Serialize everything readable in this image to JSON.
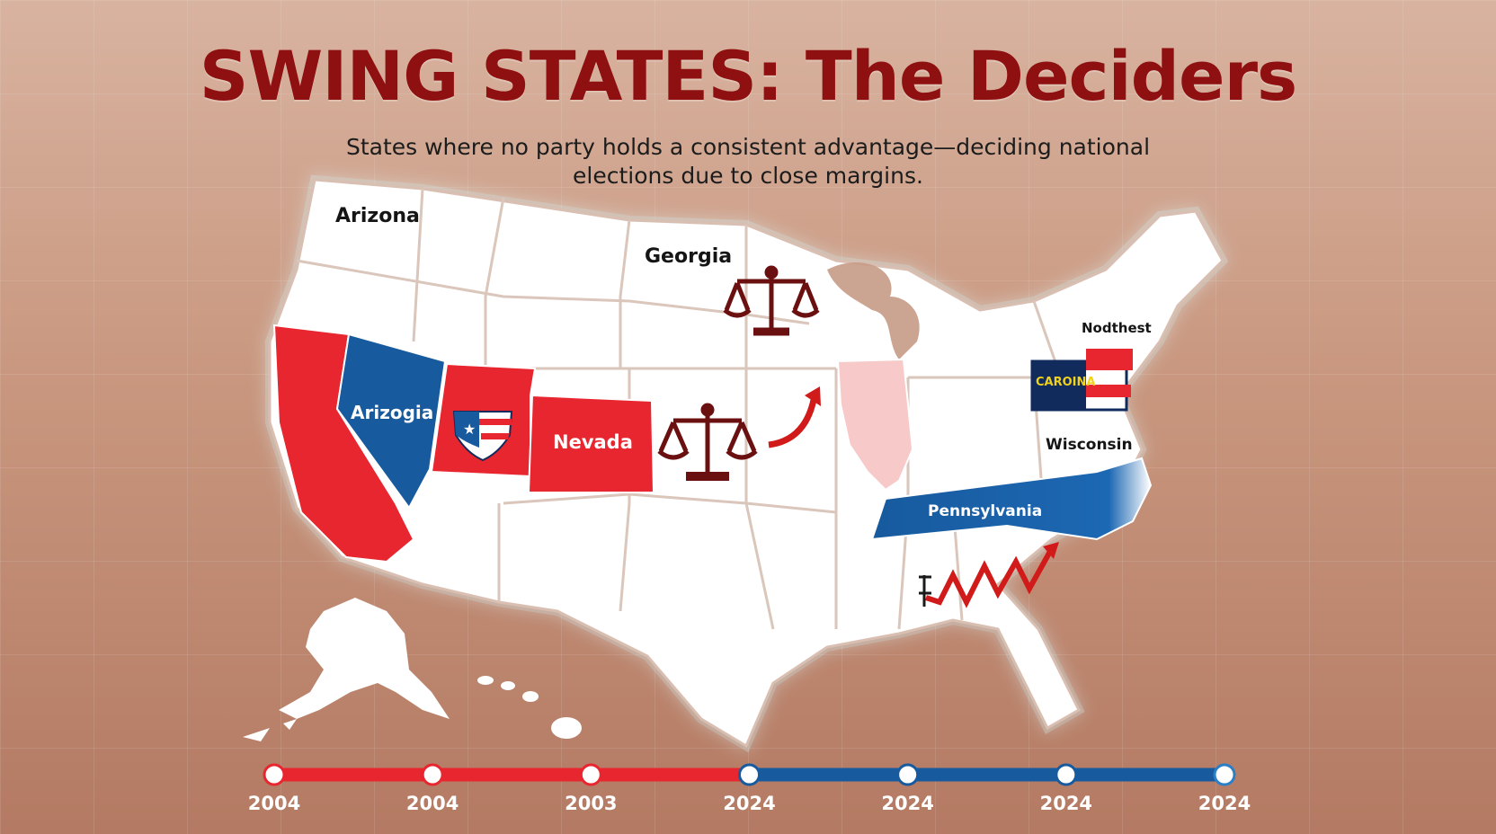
{
  "header": {
    "title": "SWING STATES: The Deciders",
    "subtitle": "States where no party holds a consistent advantage—deciding national elections due to close margins."
  },
  "colors": {
    "republican": "#e8262f",
    "democrat": "#175a9e",
    "neutral_state": "#ffffff",
    "title": "#8e1010",
    "highlight_light_red": "#f7c9c9"
  },
  "map": {
    "labels": {
      "arizona": "Arizona",
      "georgia": "Georgia",
      "northeast": "Nodthest",
      "arizogia": "Arizogia",
      "nevada": "Nevada",
      "carolina": "CAROINA",
      "wisconsin": "Wisconsin",
      "pennsylvania": "Pennsylvania"
    },
    "icons": [
      "scales-of-justice-icon",
      "scales-of-justice-icon",
      "trend-arrow-icon",
      "zigzag-trend-icon",
      "flag-shield-icon"
    ]
  },
  "timeline": {
    "points": [
      {
        "year": "2004",
        "color": "#e8262f"
      },
      {
        "year": "2004",
        "color": "#e8262f"
      },
      {
        "year": "2003",
        "color": "#e8262f"
      },
      {
        "year": "2024",
        "color": "#175a9e"
      },
      {
        "year": "2024",
        "color": "#175a9e"
      },
      {
        "year": "2024",
        "color": "#175a9e"
      },
      {
        "year": "2024",
        "color": "#2a7fc6"
      }
    ]
  }
}
